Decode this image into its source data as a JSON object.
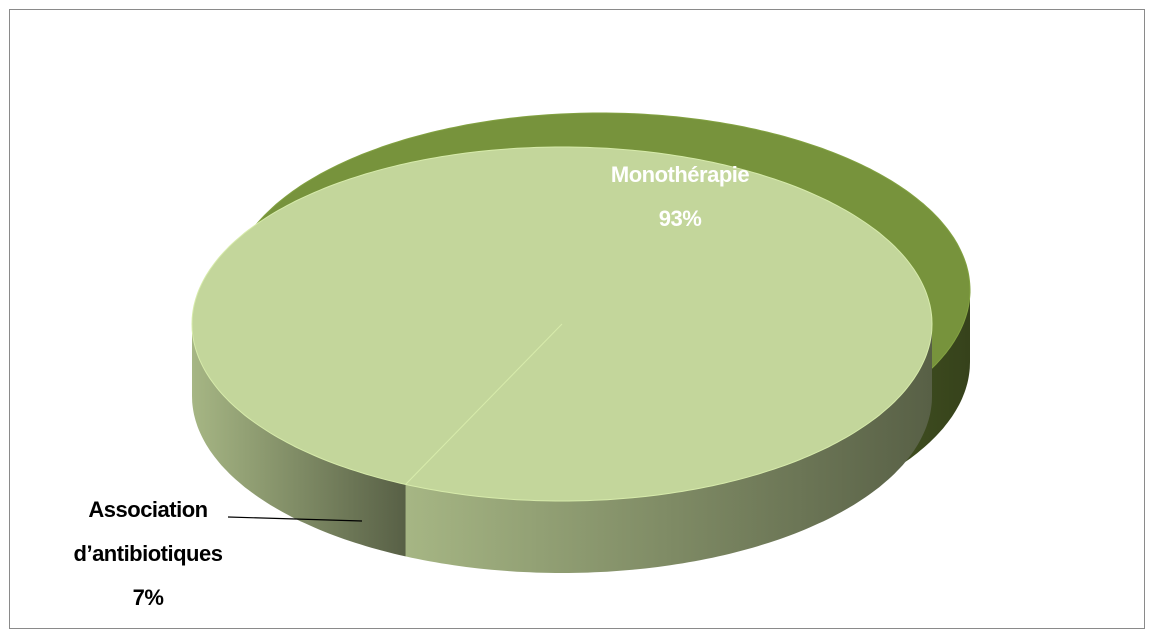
{
  "chart_data": {
    "type": "pie",
    "categories": [
      "Monothérapie",
      "Association d’antibiotiques"
    ],
    "values": [
      93,
      7
    ],
    "value_labels": [
      "93%",
      "7%"
    ],
    "colors": [
      "#77933c",
      "#c3d69b"
    ]
  }
}
